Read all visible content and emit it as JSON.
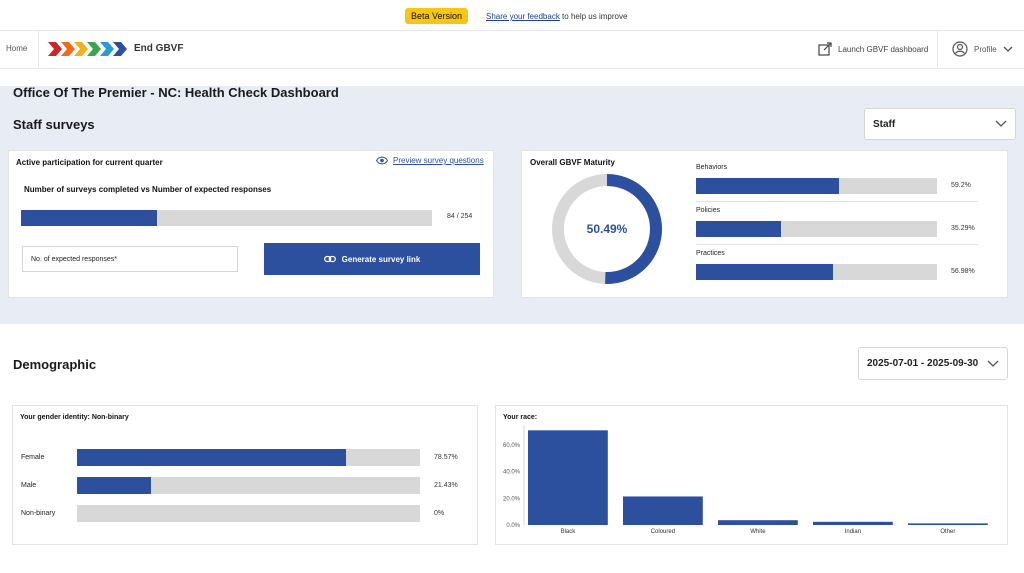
{
  "beta": {
    "badge": "Beta Version",
    "link": "Share your feedback",
    "suffix": " to help us improve"
  },
  "nav": {
    "home": "Home",
    "brand": "End GBVF",
    "launch": "Launch GBVF dashboard",
    "profile": "Profile"
  },
  "page_title": "Office Of The Premier - NC: Health Check Dashboard",
  "staff": {
    "title": "Staff surveys",
    "select_value": "Staff",
    "participation": {
      "title": "Active participation for current quarter",
      "preview_link": "Preview survey questions",
      "subtitle": "Number of surveys completed vs Number of expected responses",
      "progress_fraction": 0.3307,
      "progress_text": "84 / 254",
      "input_placeholder": "No. of expected responses*",
      "button_label": "Generate survey link"
    },
    "maturity": {
      "title": "Overall GBVF Maturity",
      "overall_text": "50.49%",
      "overall_value": 50.49,
      "items": [
        {
          "label": "Behaviors",
          "value": 59.2,
          "text": "59.2%"
        },
        {
          "label": "Policies",
          "value": 35.29,
          "text": "35.29%"
        },
        {
          "label": "Practices",
          "value": 56.98,
          "text": "56.98%"
        }
      ]
    }
  },
  "demographic": {
    "title": "Demographic",
    "date_range": "2025-07-01 - 2025-09-30",
    "gender": {
      "title": "Your gender identity: Non-binary",
      "items": [
        {
          "label": "Female",
          "value": 78.57,
          "text": "78.57%"
        },
        {
          "label": "Male",
          "value": 21.43,
          "text": "21.43%"
        },
        {
          "label": "Non-binary",
          "value": 0,
          "text": "0%"
        }
      ]
    },
    "race": {
      "title": "Your race:"
    }
  },
  "chart_data": {
    "type": "bar",
    "title": "Your race:",
    "categories": [
      "Black",
      "Coloured",
      "White",
      "Indian",
      "Other"
    ],
    "values": [
      71.0,
      21.4,
      3.6,
      2.4,
      1.2
    ],
    "ylim": [
      0,
      72
    ],
    "yticks": [
      "0.0%",
      "20.0%",
      "40.0%",
      "60.0%"
    ],
    "ytick_values": [
      0,
      20,
      40,
      60
    ],
    "color": "#2c4f9e",
    "grid": false
  },
  "colors": {
    "accent": "#2c4f9e",
    "track": "#d8d8d8",
    "band": "#e8ecf4",
    "beta": "#f7c615"
  }
}
